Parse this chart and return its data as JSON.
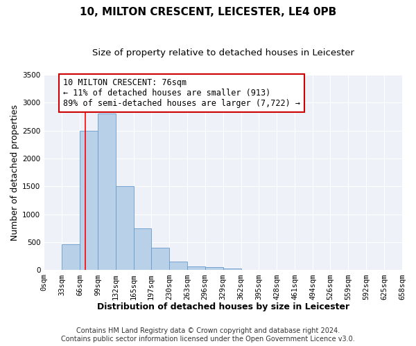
{
  "title": "10, MILTON CRESCENT, LEICESTER, LE4 0PB",
  "subtitle": "Size of property relative to detached houses in Leicester",
  "xlabel": "Distribution of detached houses by size in Leicester",
  "ylabel": "Number of detached properties",
  "bin_edges": [
    0,
    33,
    66,
    99,
    132,
    165,
    197,
    230,
    263,
    296,
    329,
    362,
    395,
    428,
    461,
    494,
    526,
    559,
    592,
    625,
    658
  ],
  "bin_counts": [
    5,
    460,
    2500,
    2810,
    1500,
    750,
    400,
    150,
    65,
    55,
    30,
    0,
    0,
    0,
    0,
    0,
    0,
    0,
    0,
    0
  ],
  "xtick_labels": [
    "0sqm",
    "33sqm",
    "66sqm",
    "99sqm",
    "132sqm",
    "165sqm",
    "197sqm",
    "230sqm",
    "263sqm",
    "296sqm",
    "329sqm",
    "362sqm",
    "395sqm",
    "428sqm",
    "461sqm",
    "494sqm",
    "526sqm",
    "559sqm",
    "592sqm",
    "625sqm",
    "658sqm"
  ],
  "ylim": [
    0,
    3500
  ],
  "yticks": [
    0,
    500,
    1000,
    1500,
    2000,
    2500,
    3000,
    3500
  ],
  "bar_color": "#b8d0e8",
  "bar_edgecolor": "#6699cc",
  "vline_x": 76,
  "vline_color": "red",
  "annotation_text": "10 MILTON CRESCENT: 76sqm\n← 11% of detached houses are smaller (913)\n89% of semi-detached houses are larger (7,722) →",
  "annotation_box_edgecolor": "#cc0000",
  "annotation_box_facecolor": "white",
  "footnote1": "Contains HM Land Registry data © Crown copyright and database right 2024.",
  "footnote2": "Contains public sector information licensed under the Open Government Licence v3.0.",
  "background_color": "#ffffff",
  "plot_bg_color": "#eef2f8",
  "title_fontsize": 11,
  "subtitle_fontsize": 9.5,
  "axis_label_fontsize": 9,
  "tick_fontsize": 7.5,
  "annotation_fontsize": 8.5,
  "footnote_fontsize": 7
}
